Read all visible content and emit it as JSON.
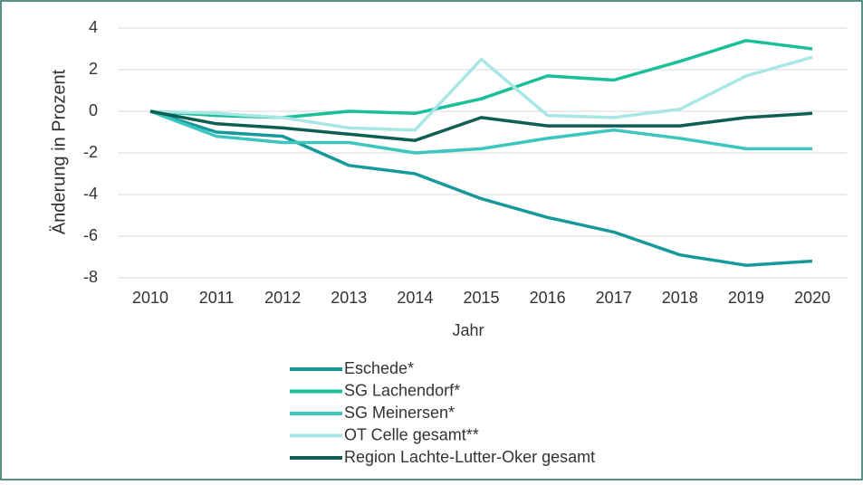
{
  "chart_data": {
    "type": "line",
    "x_label": "Jahr",
    "y_label": "Änderung in Prozent",
    "categories": [
      "2010",
      "2011",
      "2012",
      "2013",
      "2014",
      "2015",
      "2016",
      "2017",
      "2018",
      "2019",
      "2020"
    ],
    "series": [
      {
        "name": "Eschede*",
        "color": "#17999b",
        "values": [
          0,
          -1.0,
          -1.2,
          -2.6,
          -3.0,
          -4.2,
          -5.1,
          -5.8,
          -6.9,
          -7.4,
          -7.2
        ]
      },
      {
        "name": "SG Lachendorf*",
        "color": "#19bf98",
        "values": [
          0,
          -0.2,
          -0.3,
          0.0,
          -0.1,
          0.6,
          1.7,
          1.5,
          2.4,
          3.4,
          3.0
        ]
      },
      {
        "name": "SG Meinersen*",
        "color": "#3cc6bf",
        "values": [
          0,
          -1.2,
          -1.5,
          -1.5,
          -2.0,
          -1.8,
          -1.3,
          -0.9,
          -1.3,
          -1.8,
          -1.8
        ]
      },
      {
        "name": "OT Celle gesamt**",
        "color": "#a9e6e6",
        "values": [
          0,
          -0.1,
          -0.3,
          -0.8,
          -0.9,
          2.5,
          -0.2,
          -0.3,
          0.1,
          1.7,
          2.6
        ]
      },
      {
        "name": "Region Lachte-Lutter-Oker gesamt",
        "color": "#0e5e54",
        "values": [
          0,
          -0.6,
          -0.8,
          -1.1,
          -1.4,
          -0.3,
          -0.7,
          -0.7,
          -0.7,
          -0.3,
          -0.1
        ]
      }
    ],
    "ylim": [
      -8,
      4
    ],
    "yticks": [
      -8,
      -6,
      -4,
      -2,
      0,
      2,
      4
    ],
    "grid": true,
    "legend": "bottom"
  }
}
